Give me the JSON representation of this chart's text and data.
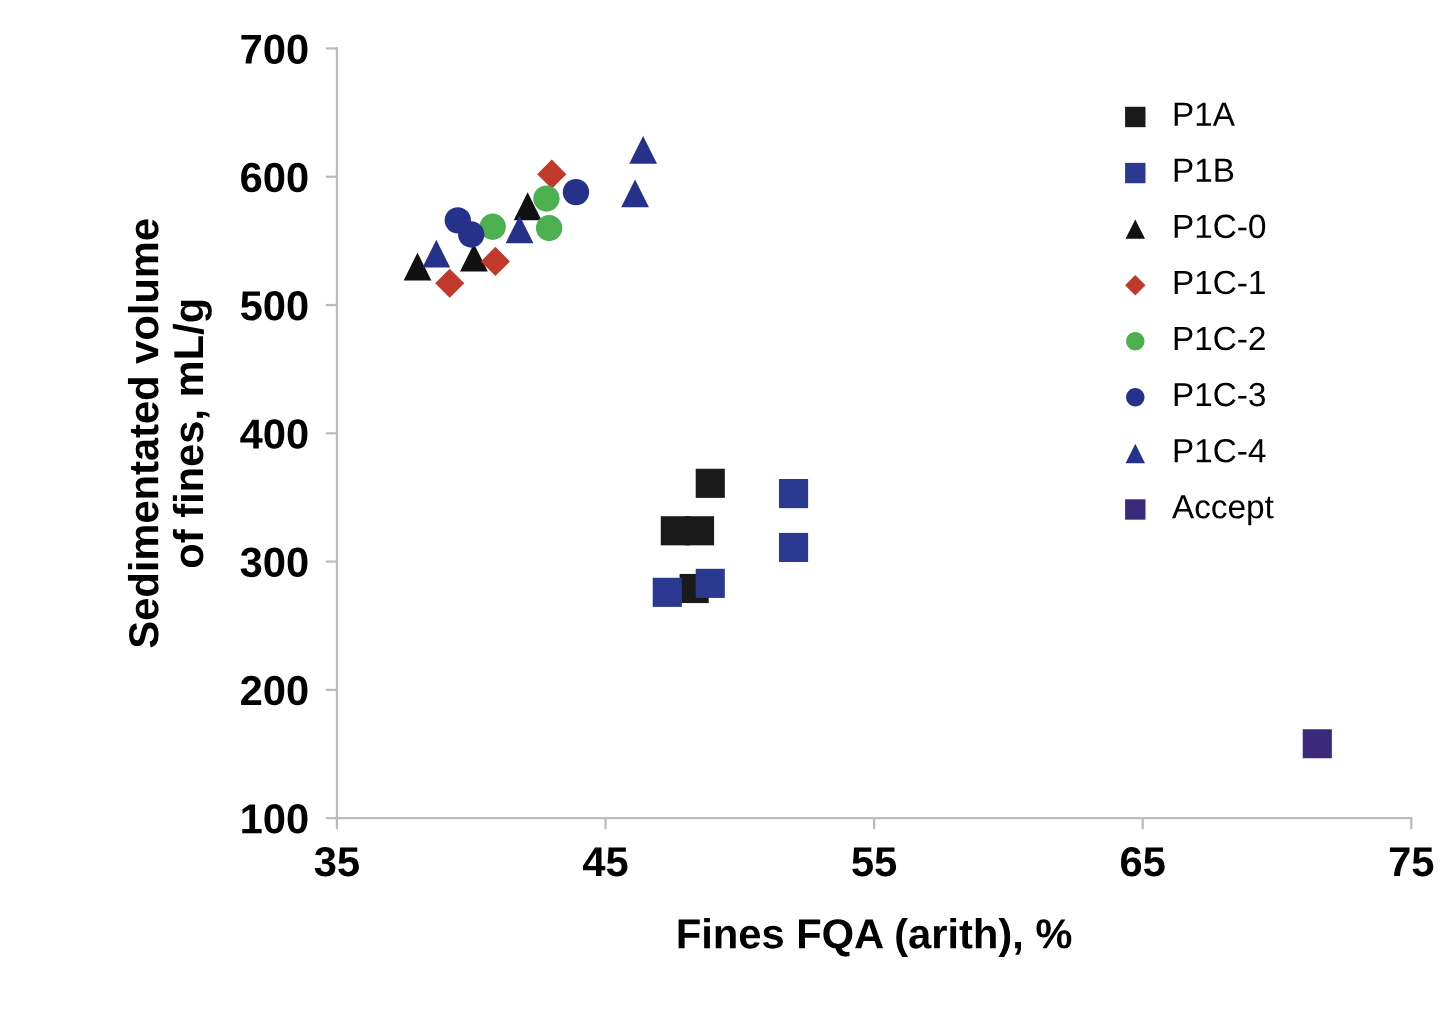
{
  "chart_data": {
    "type": "scatter",
    "xlabel": "Fines FQA (arith), %",
    "ylabel": "Sedimentated volume\nof fines, mL/g",
    "xlim": [
      35,
      75
    ],
    "xticks": [
      35,
      45,
      55,
      65,
      75
    ],
    "ylim": [
      100,
      700
    ],
    "yticks": [
      100,
      200,
      300,
      400,
      500,
      600,
      700
    ],
    "grid": false,
    "legend": "top right",
    "series": [
      {
        "name": "P1A",
        "color": "#1a1a1a",
        "marker": "square",
        "x": [
          48.9,
          47.6,
          48.5,
          48.3
        ],
        "values": [
          361,
          324,
          324,
          279
        ]
      },
      {
        "name": "P1B",
        "color": "#2b3990",
        "marker": "square",
        "x": [
          47.3,
          48.9,
          52.0,
          52.0
        ],
        "values": [
          276,
          283,
          353,
          311
        ]
      },
      {
        "name": "P1C-0",
        "color": "#111111",
        "marker": "triangle",
        "x": [
          38.0,
          40.1,
          42.1
        ],
        "values": [
          530,
          537,
          577
        ]
      },
      {
        "name": "P1C-1",
        "color": "#c0392b",
        "marker": "diamond",
        "x": [
          39.2,
          40.9,
          43.0
        ],
        "values": [
          517,
          534,
          602
        ]
      },
      {
        "name": "P1C-2",
        "color": "#4caf50",
        "marker": "circle",
        "x": [
          40.8,
          42.8,
          42.9
        ],
        "values": [
          561,
          583,
          560
        ]
      },
      {
        "name": "P1C-3",
        "color": "#26328a",
        "marker": "circle",
        "x": [
          39.5,
          40.0,
          43.9
        ],
        "values": [
          566,
          555,
          588
        ]
      },
      {
        "name": "P1C-4",
        "color": "#26328a",
        "marker": "triangle",
        "x": [
          38.7,
          46.4,
          46.1,
          41.8
        ],
        "values": [
          540,
          621,
          587,
          559
        ]
      },
      {
        "name": "Accept",
        "color": "#3b2a7a",
        "marker": "square",
        "x": [
          71.5
        ],
        "values": [
          158
        ]
      }
    ]
  }
}
